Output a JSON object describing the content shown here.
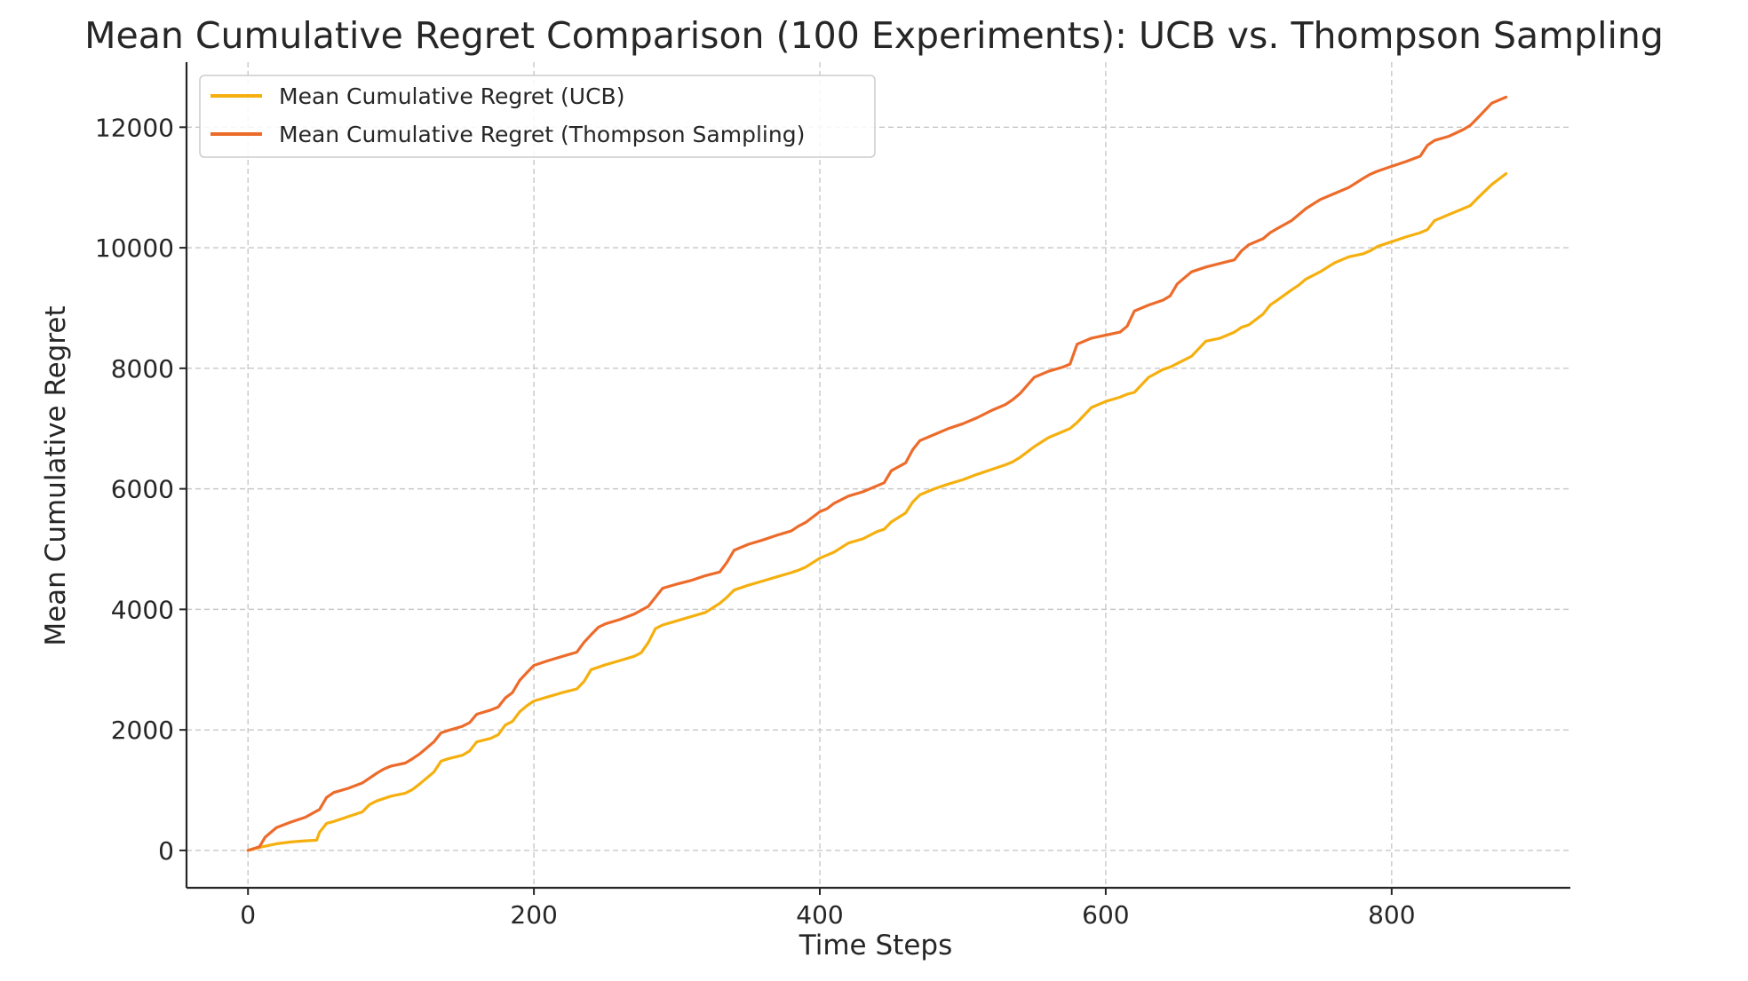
{
  "chart_data": {
    "type": "line",
    "title": "Mean Cumulative Regret Comparison (100 Experiments): UCB vs. Thompson Sampling",
    "xlabel": "Time Steps",
    "ylabel": "Mean Cumulative Regret",
    "xlim": [
      -43,
      925
    ],
    "ylim": [
      -620,
      13080
    ],
    "xticks": [
      0,
      200,
      400,
      600,
      800
    ],
    "yticks": [
      0,
      2000,
      4000,
      6000,
      8000,
      10000,
      12000
    ],
    "grid": true,
    "legend_position": "top-left",
    "series": [
      {
        "name": "Mean Cumulative Regret (UCB)",
        "color": "#f5b00f",
        "x": [
          0,
          10,
          20,
          30,
          40,
          48,
          50,
          55,
          60,
          70,
          80,
          85,
          90,
          100,
          110,
          115,
          120,
          130,
          135,
          140,
          150,
          155,
          160,
          170,
          175,
          180,
          185,
          190,
          195,
          200,
          210,
          220,
          230,
          235,
          240,
          250,
          260,
          270,
          275,
          280,
          285,
          290,
          300,
          310,
          320,
          330,
          335,
          340,
          350,
          360,
          370,
          380,
          385,
          390,
          400,
          405,
          410,
          420,
          430,
          440,
          445,
          450,
          460,
          465,
          470,
          480,
          490,
          500,
          510,
          520,
          530,
          535,
          540,
          550,
          560,
          570,
          575,
          580,
          590,
          600,
          610,
          615,
          620,
          630,
          640,
          645,
          650,
          660,
          670,
          680,
          690,
          695,
          700,
          710,
          715,
          720,
          730,
          735,
          740,
          750,
          760,
          770,
          780,
          785,
          790,
          800,
          810,
          820,
          825,
          830,
          840,
          850,
          855,
          860,
          870,
          880
        ],
        "y": [
          0,
          60,
          110,
          140,
          160,
          170,
          300,
          450,
          480,
          560,
          640,
          760,
          820,
          900,
          950,
          1010,
          1100,
          1300,
          1480,
          1520,
          1580,
          1650,
          1800,
          1860,
          1920,
          2080,
          2140,
          2300,
          2400,
          2480,
          2550,
          2620,
          2680,
          2800,
          3000,
          3080,
          3150,
          3220,
          3280,
          3450,
          3680,
          3740,
          3810,
          3880,
          3950,
          4100,
          4200,
          4320,
          4400,
          4470,
          4540,
          4610,
          4650,
          4700,
          4850,
          4900,
          4950,
          5100,
          5170,
          5290,
          5330,
          5450,
          5600,
          5780,
          5900,
          6000,
          6080,
          6150,
          6240,
          6320,
          6400,
          6450,
          6520,
          6700,
          6850,
          6950,
          7000,
          7100,
          7350,
          7450,
          7520,
          7570,
          7600,
          7850,
          7980,
          8020,
          8080,
          8200,
          8450,
          8500,
          8600,
          8680,
          8720,
          8900,
          9050,
          9130,
          9300,
          9380,
          9480,
          9600,
          9750,
          9850,
          9900,
          9950,
          10020,
          10100,
          10180,
          10250,
          10300,
          10450,
          10550,
          10650,
          10700,
          10820,
          11050,
          11230
        ]
      },
      {
        "name": "Mean Cumulative Regret (Thompson Sampling)",
        "color": "#ed6b2a",
        "x": [
          0,
          8,
          12,
          20,
          30,
          40,
          50,
          55,
          60,
          70,
          80,
          90,
          95,
          100,
          110,
          115,
          120,
          125,
          130,
          135,
          140,
          150,
          155,
          160,
          170,
          175,
          180,
          185,
          190,
          195,
          200,
          210,
          220,
          230,
          235,
          240,
          245,
          250,
          260,
          270,
          280,
          285,
          290,
          300,
          310,
          320,
          330,
          335,
          340,
          350,
          360,
          370,
          380,
          385,
          390,
          400,
          405,
          410,
          420,
          430,
          440,
          445,
          450,
          460,
          465,
          470,
          480,
          490,
          500,
          510,
          520,
          530,
          535,
          540,
          550,
          560,
          570,
          575,
          580,
          590,
          600,
          610,
          615,
          620,
          630,
          640,
          645,
          650,
          660,
          670,
          680,
          690,
          695,
          700,
          710,
          715,
          720,
          730,
          740,
          750,
          760,
          770,
          780,
          785,
          790,
          800,
          810,
          820,
          825,
          830,
          840,
          850,
          855,
          860,
          870,
          880
        ],
        "y": [
          0,
          60,
          220,
          380,
          470,
          550,
          680,
          880,
          960,
          1030,
          1120,
          1280,
          1350,
          1400,
          1450,
          1520,
          1600,
          1700,
          1800,
          1950,
          1990,
          2060,
          2120,
          2260,
          2330,
          2380,
          2530,
          2620,
          2820,
          2950,
          3070,
          3150,
          3220,
          3290,
          3450,
          3580,
          3700,
          3760,
          3830,
          3920,
          4050,
          4200,
          4350,
          4420,
          4480,
          4560,
          4620,
          4780,
          4980,
          5080,
          5150,
          5230,
          5300,
          5380,
          5440,
          5620,
          5670,
          5760,
          5880,
          5950,
          6050,
          6100,
          6300,
          6430,
          6650,
          6800,
          6900,
          7000,
          7080,
          7180,
          7300,
          7400,
          7480,
          7580,
          7850,
          7950,
          8020,
          8070,
          8400,
          8500,
          8550,
          8600,
          8700,
          8950,
          9050,
          9130,
          9200,
          9400,
          9600,
          9680,
          9740,
          9800,
          9950,
          10050,
          10150,
          10250,
          10320,
          10450,
          10650,
          10800,
          10900,
          11000,
          11150,
          11220,
          11270,
          11350,
          11430,
          11520,
          11700,
          11780,
          11850,
          11960,
          12030,
          12150,
          12400,
          12500
        ]
      }
    ]
  }
}
